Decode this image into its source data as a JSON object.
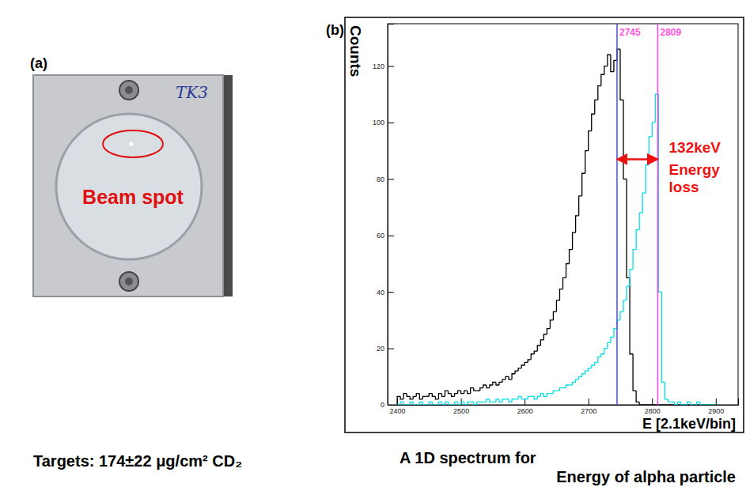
{
  "chart_data": {
    "type": "histogram",
    "panel_label": "(b)",
    "y_label": "Counts",
    "x_label": "E [2.1keV/bin]",
    "xlim": [
      2385,
      2935
    ],
    "xticks": [
      2400,
      2500,
      2600,
      2700,
      2800,
      2900
    ],
    "ylim": [
      0,
      135
    ],
    "yticks": [
      0,
      20,
      40,
      60,
      80,
      100,
      120
    ],
    "grid": false,
    "bins": [
      2400,
      2405,
      2410,
      2415,
      2420,
      2425,
      2430,
      2435,
      2440,
      2445,
      2450,
      2455,
      2460,
      2465,
      2470,
      2475,
      2480,
      2485,
      2490,
      2495,
      2500,
      2505,
      2510,
      2515,
      2520,
      2525,
      2530,
      2535,
      2540,
      2545,
      2550,
      2555,
      2560,
      2565,
      2570,
      2575,
      2580,
      2585,
      2590,
      2595,
      2600,
      2605,
      2610,
      2615,
      2620,
      2625,
      2630,
      2635,
      2640,
      2645,
      2650,
      2655,
      2660,
      2665,
      2670,
      2675,
      2680,
      2685,
      2690,
      2695,
      2700,
      2705,
      2710,
      2715,
      2720,
      2725,
      2730,
      2735,
      2740,
      2745,
      2750,
      2755,
      2760,
      2765,
      2770,
      2775,
      2780,
      2785,
      2790,
      2795,
      2800,
      2805,
      2810,
      2815,
      2820,
      2825,
      2830,
      2835,
      2840,
      2845,
      2850,
      2855,
      2860,
      2865,
      2870,
      2875,
      2880,
      2885,
      2890,
      2895,
      2900
    ],
    "series": [
      {
        "color": "#000000",
        "values": [
          3,
          2,
          4,
          3,
          2,
          3,
          4,
          2,
          3,
          3,
          4,
          3,
          2,
          4,
          3,
          5,
          4,
          3,
          4,
          5,
          4,
          5,
          4,
          6,
          5,
          5,
          6,
          7,
          6,
          7,
          8,
          7,
          8,
          9,
          10,
          9,
          11,
          12,
          13,
          14,
          15,
          16,
          18,
          19,
          21,
          23,
          25,
          27,
          30,
          33,
          37,
          41,
          45,
          50,
          55,
          61,
          67,
          74,
          82,
          90,
          97,
          103,
          108,
          113,
          117,
          120,
          124,
          118,
          122,
          126,
          108,
          80,
          45,
          18,
          5,
          1,
          0,
          0,
          0,
          0,
          0,
          0,
          0,
          0,
          0,
          0,
          0,
          0,
          0,
          0,
          0,
          0,
          0,
          0,
          0,
          0,
          0,
          0,
          0,
          0
        ]
      },
      {
        "color": "#00dde6",
        "values": [
          0,
          1,
          0,
          0,
          1,
          0,
          0,
          1,
          0,
          0,
          1,
          0,
          0,
          1,
          0,
          1,
          0,
          0,
          1,
          0,
          1,
          0,
          1,
          1,
          0,
          1,
          1,
          1,
          2,
          1,
          1,
          2,
          1,
          2,
          2,
          1,
          2,
          2,
          3,
          2,
          2,
          3,
          3,
          2,
          3,
          4,
          3,
          4,
          4,
          5,
          5,
          6,
          6,
          7,
          7,
          8,
          9,
          10,
          11,
          12,
          13,
          14,
          15,
          17,
          18,
          20,
          22,
          24,
          27,
          30,
          33,
          37,
          42,
          48,
          55,
          62,
          68,
          75,
          85,
          95,
          100,
          110,
          40,
          8,
          2,
          1,
          1,
          0,
          1,
          0,
          0,
          1,
          0,
          0,
          1,
          0,
          0,
          0,
          0,
          0
        ]
      }
    ],
    "markers": [
      {
        "value": 2745,
        "color": "#4a4aff"
      },
      {
        "value": 2809,
        "color": "#ff40ff"
      }
    ],
    "annotation": {
      "from": 2745,
      "to": 2809,
      "y": 87,
      "label": [
        "132keV",
        "Energy loss"
      ],
      "color": "#ee1111"
    }
  },
  "photo": {
    "panel_label": "(a)",
    "plate_text": "TK3",
    "annotation": "Beam spot"
  },
  "captions": {
    "target": "Targets: 174±22 μg/cm² CD₂",
    "spectrum": [
      "A 1D spectrum for",
      "Energy of alpha particle"
    ]
  }
}
